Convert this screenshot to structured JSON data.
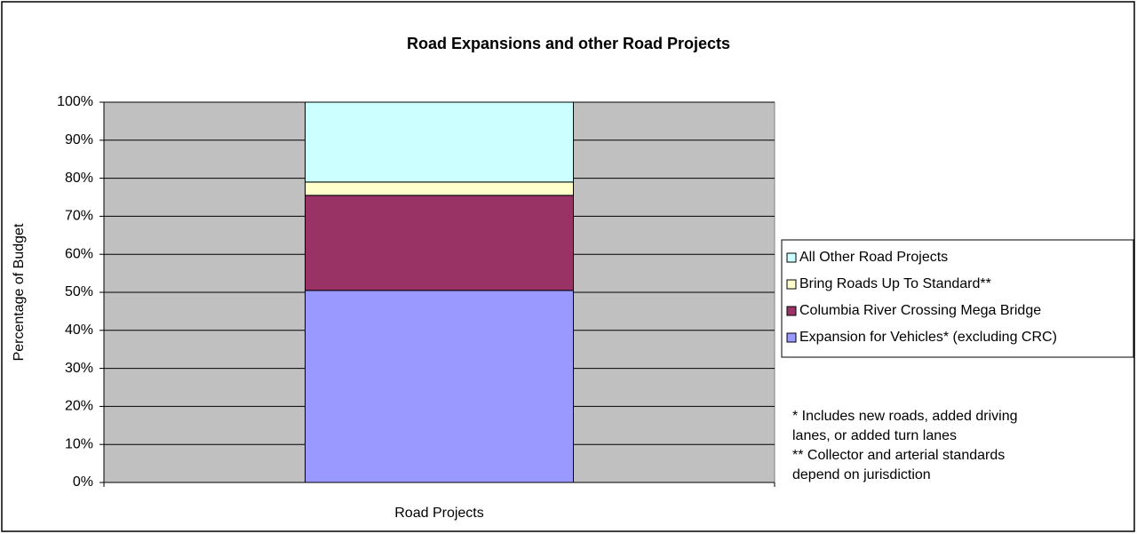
{
  "chart_data": {
    "type": "stacked_bar_100",
    "title": "Road Expansions and other Road Projects",
    "y_axis_label": "Percentage of Budget",
    "categories": [
      "Road Projects"
    ],
    "series": [
      {
        "name": "Expansion for Vehicles* (excluding CRC)",
        "color": "#9999ff",
        "values": [
          50.5
        ]
      },
      {
        "name": "Columbia River Crossing Mega Bridge",
        "color": "#993366",
        "values": [
          25
        ]
      },
      {
        "name": "Bring Roads Up To Standard**",
        "color": "#ffffcc",
        "values": [
          3.5
        ]
      },
      {
        "name": "All Other Road Projects",
        "color": "#ccffff",
        "values": [
          21
        ]
      }
    ],
    "ylim": [
      0,
      100
    ],
    "yticks": [
      {
        "value": 0,
        "label": "0%"
      },
      {
        "value": 10,
        "label": "10%"
      },
      {
        "value": 20,
        "label": "20%"
      },
      {
        "value": 30,
        "label": "30%"
      },
      {
        "value": 40,
        "label": "40%"
      },
      {
        "value": 50,
        "label": "50%"
      },
      {
        "value": 60,
        "label": "60%"
      },
      {
        "value": 70,
        "label": "70%"
      },
      {
        "value": 80,
        "label": "80%"
      },
      {
        "value": 90,
        "label": "90%"
      },
      {
        "value": 100,
        "label": "100%"
      }
    ],
    "grid": true,
    "plot_background": "#c0c0c0",
    "legend_position": "right",
    "notes": [
      "* Includes new roads, added driving",
      "lanes, or added turn lanes",
      "** Collector and arterial standards",
      "depend on jurisdiction"
    ]
  }
}
